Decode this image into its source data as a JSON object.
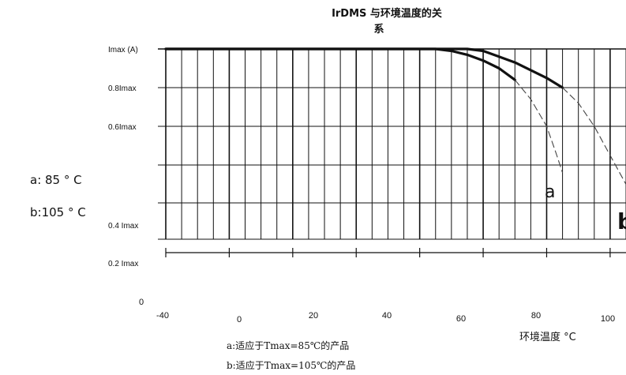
{
  "chart_data": {
    "type": "line",
    "title": "IrDMS 与环境温度的关系",
    "title_line1": "IrDMS 与环境温度的关",
    "title_line2": "系",
    "xlabel": "环境温度 °C",
    "ylabel": "",
    "x_tick_labels": [
      "-40",
      "0",
      "20",
      "40",
      "60",
      "80",
      "100"
    ],
    "y_tick_labels": [
      "Imax (A)",
      "0.8Imax",
      "0.6Imax",
      "0.4 Imax",
      "0.2 Imax",
      "0"
    ],
    "xlim": [
      -40,
      105
    ],
    "grid": true,
    "series": [
      {
        "name": "a",
        "label": "a",
        "solid": {
          "x": [
            -40,
            -30,
            -20,
            -10,
            0,
            10,
            20,
            30,
            40,
            45,
            50,
            55,
            60,
            65,
            70
          ],
          "y": [
            1.0,
            1.0,
            1.0,
            1.0,
            1.0,
            1.0,
            1.0,
            1.0,
            1.0,
            1.0,
            0.99,
            0.97,
            0.94,
            0.9,
            0.84
          ]
        },
        "dashed": {
          "x": [
            70,
            75,
            80,
            83,
            85
          ],
          "y": [
            0.84,
            0.74,
            0.6,
            0.46,
            0.36
          ]
        }
      },
      {
        "name": "b",
        "label": "b",
        "solid": {
          "x": [
            -40,
            -30,
            -20,
            -10,
            0,
            10,
            20,
            30,
            40,
            50,
            55,
            60,
            65,
            70,
            75,
            80,
            85
          ],
          "y": [
            1.0,
            1.0,
            1.0,
            1.0,
            1.0,
            1.0,
            1.0,
            1.0,
            1.0,
            1.0,
            1.0,
            0.99,
            0.96,
            0.93,
            0.89,
            0.85,
            0.8
          ]
        },
        "dashed": {
          "x": [
            85,
            90,
            95,
            100,
            105
          ],
          "y": [
            0.8,
            0.72,
            0.6,
            0.45,
            0.3
          ]
        }
      }
    ],
    "legend": [
      "a:适应于Tmax=85℃的产品",
      "b:适应于Tmax=105℃的产品"
    ]
  },
  "notes": {
    "line_a": "a: 85 ° C",
    "line_b": "b:105 ° C"
  }
}
